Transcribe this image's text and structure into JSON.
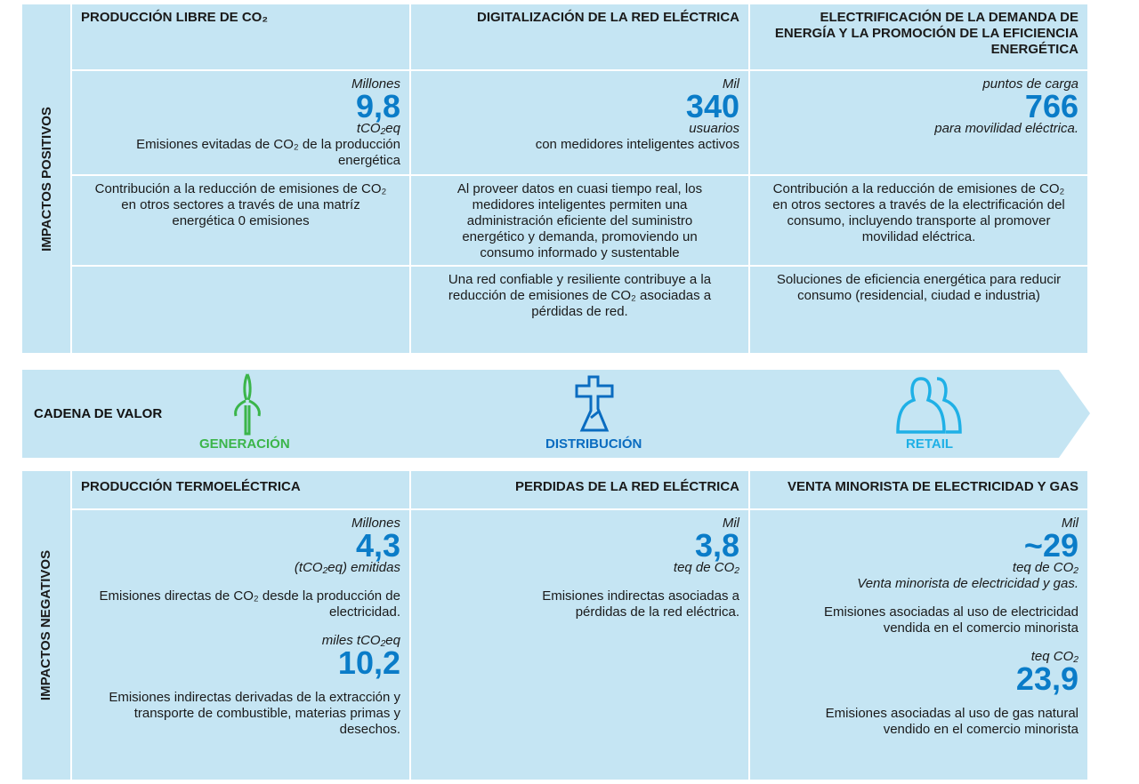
{
  "positive": {
    "side_label": "IMPACTOS POSITIVOS",
    "headers": [
      "PRODUCCIÓN LIBRE DE CO₂",
      "DIGITALIZACIÓN DE LA RED ELÉCTRICA",
      "ELECTRIFICACIÓN DE LA DEMANDA DE ENERGÍA Y LA PROMOCIÓN DE LA EFICIENCIA ENERGÉTICA"
    ],
    "metrics": [
      {
        "unit_top": "Millones",
        "value": "9,8",
        "unit_bottom": "tCO₂eq",
        "desc": "Emisiones evitadas de CO₂ de la producción energética"
      },
      {
        "unit_top": "Mil",
        "value": "340",
        "unit_bottom": "usuarios",
        "desc": "con medidores inteligentes activos"
      },
      {
        "unit_top": "puntos de carga",
        "value": "766",
        "unit_bottom": "para movilidad eléctrica.",
        "desc": ""
      }
    ],
    "row3": [
      "Contribución a la reducción de emisiones de CO₂ en otros sectores a través de una matríz energética 0 emisiones",
      "Al proveer datos en cuasi tiempo real, los medidores inteligentes permiten una administración eficiente del suministro energético y demanda, promoviendo un consumo informado y sustentable",
      "Contribución a la reducción de emisiones de CO₂ en otros sectores a través de la electrificación del consumo, incluyendo transporte al promover movilidad eléctrica."
    ],
    "row4": [
      "",
      "Una red confiable y resiliente contribuye a la reducción de emisiones de CO₂ asociadas a pérdidas de red.",
      "Soluciones de eficiencia energética para reducir consumo (residencial, ciudad e industria)"
    ]
  },
  "value_chain": {
    "label": "CADENA DE VALOR",
    "stages": [
      {
        "label": "GENERACIÓN",
        "icon": "wind-turbine-icon",
        "color": "#3bb54a"
      },
      {
        "label": "DISTRIBUCIÓN",
        "icon": "power-pole-icon",
        "color": "#0a6cc0"
      },
      {
        "label": "RETAIL",
        "icon": "customers-icon",
        "color": "#1fb0e6"
      }
    ]
  },
  "negative": {
    "side_label": "IMPACTOS NEGATIVOS",
    "headers": [
      "PRODUCCIÓN TERMOELÉCTRICA",
      "PERDIDAS DE LA RED ELÉCTRICA",
      "VENTA MINORISTA DE ELECTRICIDAD Y GAS"
    ],
    "col1": {
      "m1": {
        "unit_top": "Millones",
        "value": "4,3",
        "unit_bottom": "(tCO₂eq) emitidas",
        "desc": "Emisiones directas de CO₂ desde la producción de electricidad."
      },
      "m2": {
        "unit_top": "miles tCO₂eq",
        "value": "10,2",
        "desc": "Emisiones indirectas derivadas de la extracción y transporte de combustible, materias primas y desechos."
      }
    },
    "col2": {
      "m1": {
        "unit_top": "Mil",
        "value": "3,8",
        "unit_bottom": "teq de CO₂",
        "desc": "Emisiones indirectas asociadas a pérdidas de la red eléctrica."
      }
    },
    "col3": {
      "m1": {
        "unit_top": "Mil",
        "value": "~29",
        "unit_bottom": "teq de CO₂",
        "unit_bottom2": "Venta minorista de electricidad y gas.",
        "desc": "Emisiones asociadas al uso de electricidad vendida en el comercio minorista"
      },
      "m2": {
        "unit_top": "teq CO₂",
        "value": "23,9",
        "desc": "Emisiones asociadas al uso de gas natural vendido en el comercio minorista"
      }
    }
  }
}
